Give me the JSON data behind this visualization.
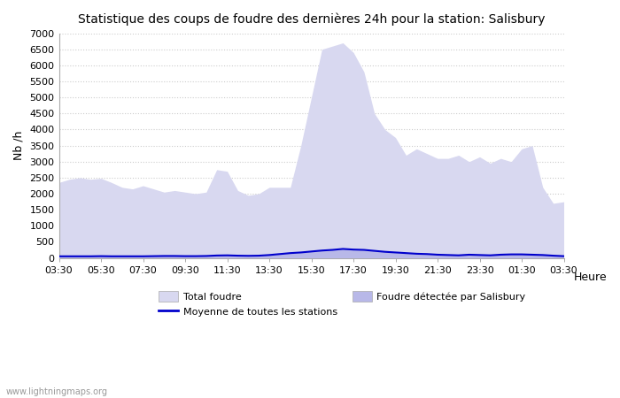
{
  "title": "Statistique des coups de foudre des dernières 24h pour la station: Salisbury",
  "xlabel": "Heure",
  "ylabel": "Nb /h",
  "background_color": "#ffffff",
  "plot_bg_color": "#ffffff",
  "grid_color": "#cccccc",
  "fill_total_color": "#d8d8f0",
  "fill_salisbury_color": "#b8b8e8",
  "line_color": "#0000cc",
  "watermark": "www.lightningmaps.org",
  "legend_total": "Total foudre",
  "legend_moyenne": "Moyenne de toutes les stations",
  "legend_salisbury": "Foudre détectée par Salisbury",
  "xtick_labels": [
    "03:30",
    "05:30",
    "07:30",
    "09:30",
    "11:30",
    "13:30",
    "15:30",
    "17:30",
    "19:30",
    "21:30",
    "23:30",
    "01:30",
    "03:30"
  ],
  "x_hours": [
    0,
    0.5,
    1.0,
    1.5,
    2.0,
    2.5,
    3.0,
    3.5,
    4.0,
    4.5,
    5.0,
    5.5,
    6.0,
    6.5,
    7.0,
    7.5,
    8.0,
    8.5,
    9.0,
    9.5,
    10.0,
    10.5,
    11.0,
    11.5,
    12.0,
    12.5,
    13.0,
    13.5,
    14.0,
    14.5,
    15.0,
    15.5,
    16.0,
    16.5,
    17.0,
    17.5,
    18.0,
    18.5,
    19.0,
    19.5,
    20.0,
    20.5,
    21.0,
    21.5,
    22.0,
    22.5,
    23.0,
    23.5,
    24.0
  ],
  "total_foudre": [
    2350,
    2450,
    2500,
    2450,
    2480,
    2350,
    2200,
    2150,
    2250,
    2150,
    2050,
    2100,
    2050,
    2000,
    2050,
    2750,
    2700,
    2100,
    1950,
    2000,
    2200,
    2200,
    2200,
    3500,
    5000,
    6500,
    6600,
    6700,
    6400,
    5800,
    4500,
    4000,
    3750,
    3200,
    3400,
    3250,
    3100,
    3100,
    3200,
    3000,
    3150,
    2950,
    3100,
    3000,
    3400,
    3500,
    2200,
    1700,
    1750
  ],
  "moyenne": [
    50,
    50,
    50,
    50,
    55,
    50,
    50,
    50,
    50,
    55,
    60,
    60,
    55,
    55,
    60,
    75,
    80,
    70,
    65,
    70,
    90,
    120,
    150,
    170,
    200,
    230,
    250,
    280,
    260,
    250,
    220,
    190,
    170,
    150,
    130,
    120,
    100,
    90,
    80,
    100,
    90,
    80,
    100,
    110,
    110,
    100,
    90,
    70,
    55
  ],
  "salisbury": [
    50,
    50,
    50,
    50,
    55,
    50,
    50,
    50,
    50,
    55,
    60,
    60,
    55,
    55,
    60,
    75,
    80,
    70,
    65,
    70,
    90,
    120,
    150,
    170,
    200,
    230,
    250,
    280,
    260,
    250,
    220,
    190,
    170,
    150,
    130,
    120,
    100,
    90,
    80,
    100,
    90,
    80,
    100,
    110,
    110,
    100,
    90,
    70,
    55
  ]
}
